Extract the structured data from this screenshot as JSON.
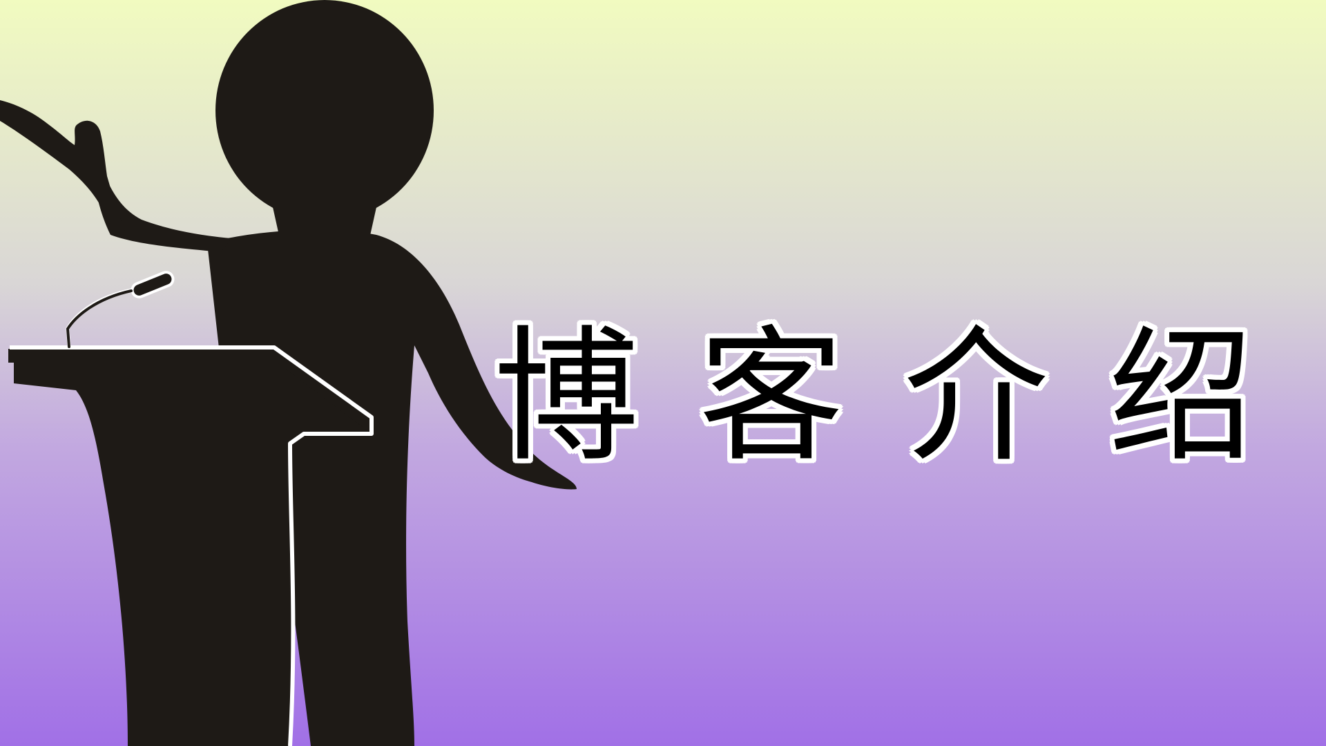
{
  "title": {
    "text": "博客介绍",
    "chars": [
      "博",
      "客",
      "介",
      "绍"
    ]
  },
  "colors": {
    "background_top": "#f1fbc0",
    "background_mid": "#d2cadf",
    "background_bottom": "#a170e6",
    "silhouette": "#1e1a16",
    "outline": "#ffffff",
    "title_text": "#000000"
  },
  "illustration": {
    "subject": "silhouette-speaker-at-podium"
  }
}
